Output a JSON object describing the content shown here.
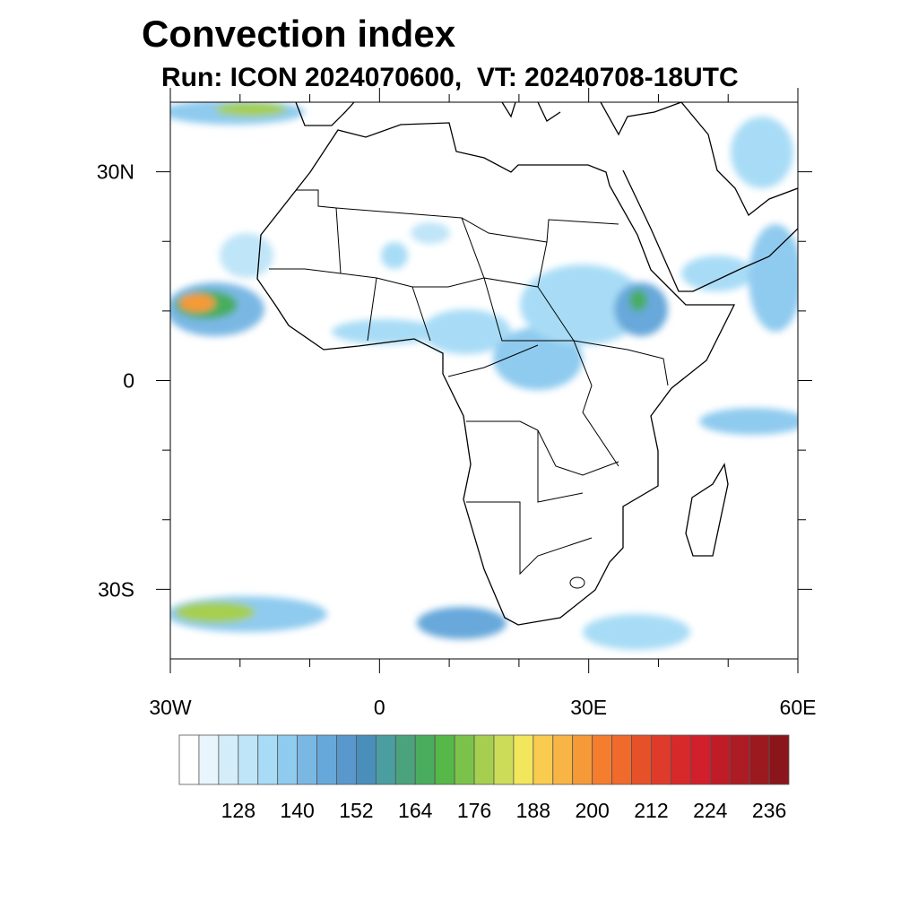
{
  "title": "Convection index",
  "subtitle": "Run: ICON 2024070600,  VT: 20240708-18UTC",
  "map": {
    "extent": {
      "lon": [
        -30,
        60
      ],
      "lat": [
        -40,
        40
      ]
    },
    "lat_labels": [
      {
        "lat": 30,
        "text": "30N"
      },
      {
        "lat": 0,
        "text": "0"
      },
      {
        "lat": -30,
        "text": "30S"
      }
    ],
    "lon_labels": [
      {
        "lon": -30,
        "text": "30W"
      },
      {
        "lon": 0,
        "text": "0"
      },
      {
        "lon": 30,
        "text": "30E"
      },
      {
        "lon": 60,
        "text": "60E"
      }
    ]
  },
  "colorbar": {
    "levels_start": 116,
    "step": 4,
    "labels": [
      "128",
      "140",
      "152",
      "164",
      "176",
      "188",
      "200",
      "212",
      "224",
      "236"
    ],
    "colors": [
      "#ffffff",
      "#e8f5fc",
      "#d3edf9",
      "#bfe5f8",
      "#a8dcf6",
      "#8fcbef",
      "#7ab8e4",
      "#67a8da",
      "#5898cd",
      "#4a8fbc",
      "#4a9ea0",
      "#4aa37d",
      "#4aad5e",
      "#56b848",
      "#7bc24a",
      "#a6cf50",
      "#ccdc58",
      "#f2e65c",
      "#f9cc50",
      "#f8b545",
      "#f69a38",
      "#f47d2e",
      "#f06a2b",
      "#e7512a",
      "#df3b2a",
      "#d8292a",
      "#d21f2c",
      "#c01c27",
      "#ad1b24",
      "#9a1a20",
      "#8a161c"
    ]
  }
}
